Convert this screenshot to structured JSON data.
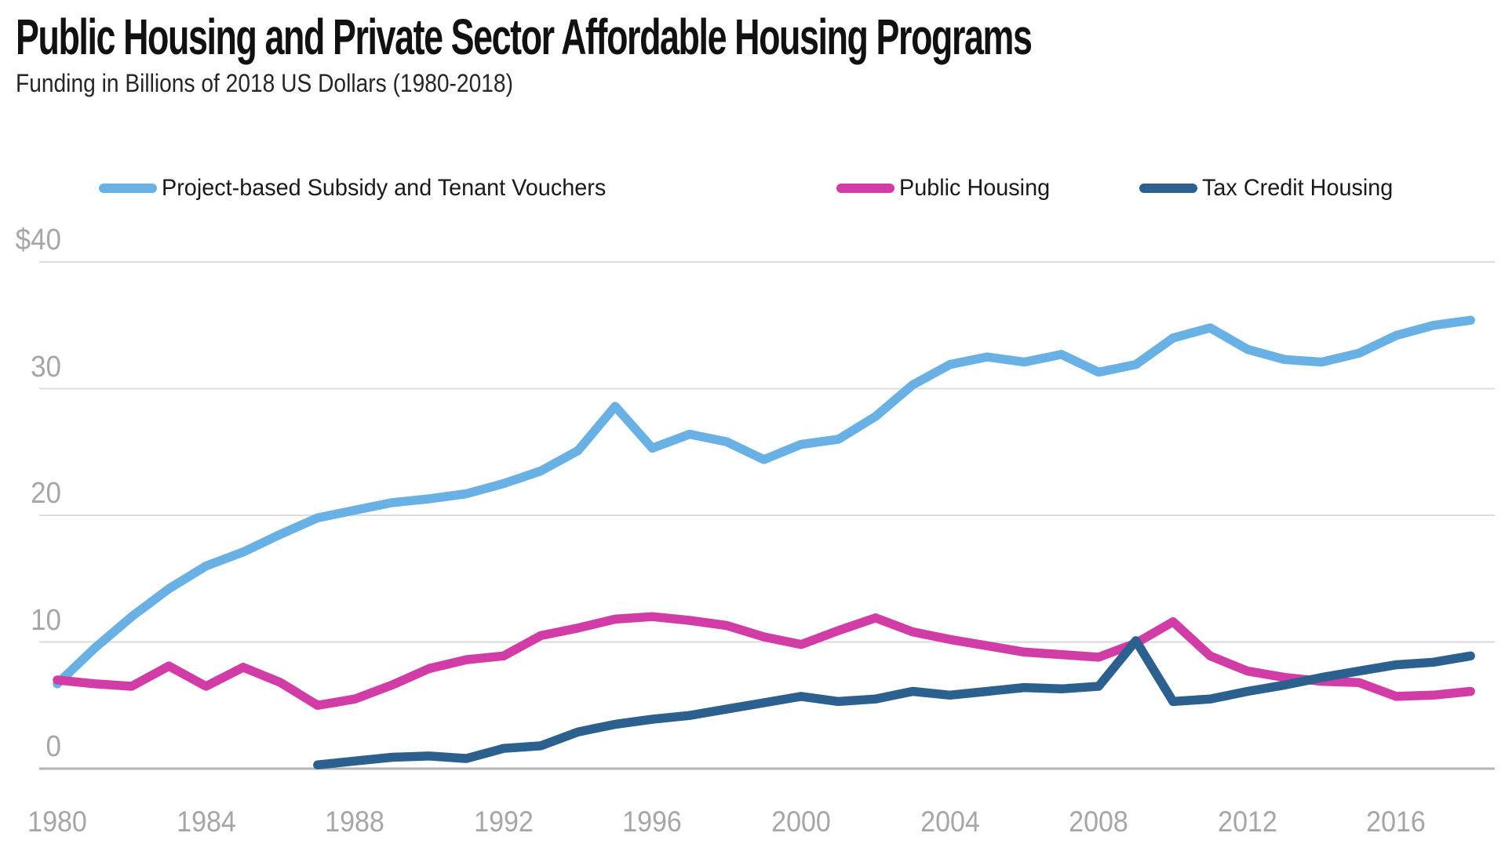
{
  "header": {
    "title": "Public Housing and Private Sector Affordable Housing Programs",
    "subtitle": "Funding in Billions of 2018 US Dollars  (1980-2018)"
  },
  "legend": [
    {
      "label": "Project-based Subsidy and Tenant Vouchers",
      "color": "#69b1e4"
    },
    {
      "label": "Public Housing",
      "color": "#d23ca6"
    },
    {
      "label": "Tax Credit Housing",
      "color": "#2c608e"
    }
  ],
  "colors": {
    "gridline": "#dcdcdc",
    "zero_line": "#b5b5b5",
    "axis_label": "#a6a6a6",
    "title_text": "#111111",
    "subtitle_text": "#262626"
  },
  "chart_data": {
    "type": "line",
    "title": "Public Housing and Private Sector Affordable Housing Programs",
    "subtitle": "Funding in Billions of 2018 US Dollars (1980-2018)",
    "xlabel": "",
    "ylabel": "Funding in Billions of 2018 US Dollars",
    "xlim": [
      1980,
      2018
    ],
    "ylim": [
      0,
      40
    ],
    "grid": "horizontal",
    "legend_position": "top",
    "x": [
      1980,
      1981,
      1982,
      1983,
      1984,
      1985,
      1986,
      1987,
      1988,
      1989,
      1990,
      1991,
      1992,
      1993,
      1994,
      1995,
      1996,
      1997,
      1998,
      1999,
      2000,
      2001,
      2002,
      2003,
      2004,
      2005,
      2006,
      2007,
      2008,
      2009,
      2010,
      2011,
      2012,
      2013,
      2014,
      2015,
      2016,
      2017,
      2018
    ],
    "x_ticks": [
      1980,
      1984,
      1988,
      1992,
      1996,
      2000,
      2004,
      2008,
      2012,
      2016
    ],
    "y_ticks": [
      {
        "label": "$40",
        "value": 40
      },
      {
        "label": "30",
        "value": 30
      },
      {
        "label": "20",
        "value": 20
      },
      {
        "label": "10",
        "value": 10
      },
      {
        "label": "0",
        "value": 0
      }
    ],
    "series": [
      {
        "name": "Project-based Subsidy and Tenant Vouchers",
        "color": "#69b1e4",
        "values": [
          6.7,
          9.5,
          12.0,
          14.2,
          16.0,
          17.1,
          18.5,
          19.8,
          20.4,
          21.0,
          21.3,
          21.7,
          22.5,
          23.5,
          25.1,
          28.6,
          25.3,
          26.4,
          25.8,
          24.4,
          25.6,
          26.0,
          27.8,
          30.3,
          31.9,
          32.5,
          32.1,
          32.7,
          31.3,
          31.9,
          34.0,
          34.8,
          33.1,
          32.3,
          32.1,
          32.8,
          34.2,
          35.0,
          35.4
        ]
      },
      {
        "name": "Public Housing",
        "color": "#d23ca6",
        "values": [
          7.0,
          6.7,
          6.5,
          8.1,
          6.5,
          8.0,
          6.8,
          5.0,
          5.5,
          6.6,
          7.9,
          8.6,
          8.9,
          10.5,
          11.1,
          11.8,
          12.0,
          11.7,
          11.3,
          10.4,
          9.8,
          10.9,
          11.9,
          10.8,
          10.2,
          9.7,
          9.2,
          9.0,
          8.8,
          9.9,
          11.6,
          8.9,
          7.7,
          7.2,
          6.9,
          6.8,
          5.7,
          5.8,
          6.1
        ]
      },
      {
        "name": "Tax Credit Housing",
        "color": "#2c608e",
        "values": [
          null,
          null,
          null,
          null,
          null,
          null,
          null,
          0.3,
          0.6,
          0.9,
          1.0,
          0.8,
          1.6,
          1.8,
          2.9,
          3.5,
          3.9,
          4.2,
          4.7,
          5.2,
          5.7,
          5.3,
          5.5,
          6.1,
          5.8,
          6.1,
          6.4,
          6.3,
          6.5,
          10.1,
          5.3,
          5.5,
          6.1,
          6.6,
          7.2,
          7.7,
          8.2,
          8.4,
          8.9
        ]
      }
    ]
  }
}
